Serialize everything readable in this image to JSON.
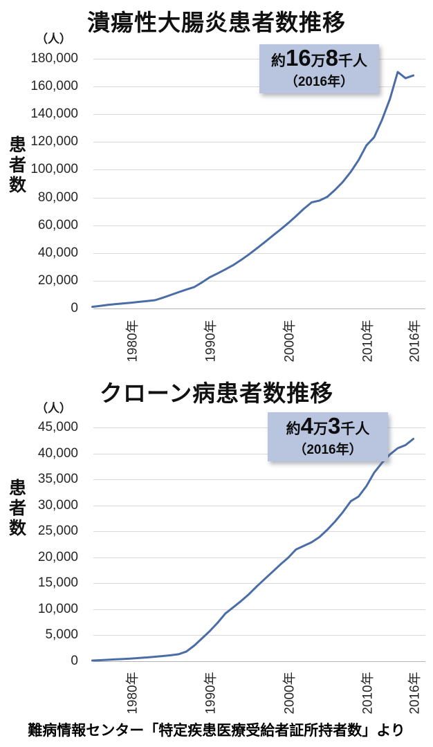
{
  "caption": "難病情報センター「特定疾患医療受給者証所持者数」より",
  "colors": {
    "line": "#4a6da7",
    "annotation_bg": "#b9c5df",
    "gridline": "#d9d9d9",
    "axis_line": "#b3b3b3",
    "text": "#1a1a1a"
  },
  "chart_data": [
    {
      "type": "line",
      "title": "潰瘍性大腸炎患者数推移",
      "unit_label": "（人）",
      "y_axis_label": "患者数",
      "legend": "none",
      "grid": "on",
      "line_color": "#4a6da7",
      "ylim": [
        0,
        180000
      ],
      "y_tick_step": 20000,
      "y_tick_labels": [
        "180,000",
        "160,000",
        "140,000",
        "120,000",
        "100,000",
        "80,000",
        "60,000",
        "40,000",
        "20,000",
        "0"
      ],
      "x_tick_years": [
        1980,
        1990,
        2000,
        2010,
        2016
      ],
      "x_tick_labels": [
        "1980年",
        "1990年",
        "2000年",
        "2010年",
        "2016年"
      ],
      "annotation": {
        "prefix": "約",
        "value1": "16",
        "unit1": "万",
        "value2": "8",
        "unit2": "千人",
        "line2": "（2016年）"
      },
      "x": [
        1975,
        1976,
        1977,
        1978,
        1979,
        1980,
        1981,
        1982,
        1983,
        1984,
        1985,
        1986,
        1987,
        1988,
        1989,
        1990,
        1991,
        1992,
        1993,
        1994,
        1995,
        1996,
        1997,
        1998,
        1999,
        2000,
        2001,
        2002,
        2003,
        2004,
        2005,
        2006,
        2007,
        2008,
        2009,
        2010,
        2011,
        2012,
        2013,
        2014,
        2015,
        2016
      ],
      "values": [
        1200,
        1900,
        2600,
        3200,
        3700,
        4200,
        4800,
        5400,
        6000,
        7800,
        9700,
        11700,
        13600,
        15400,
        18800,
        22500,
        25300,
        28200,
        31300,
        35000,
        39000,
        43300,
        47700,
        52300,
        56800,
        61500,
        66500,
        71800,
        76500,
        77800,
        80500,
        85500,
        91300,
        98500,
        107000,
        117500,
        123500,
        136000,
        151000,
        170500,
        166000,
        168000
      ]
    },
    {
      "type": "line",
      "title": "クローン病患者数推移",
      "unit_label": "（人）",
      "y_axis_label": "患者数",
      "legend": "none",
      "grid": "on",
      "line_color": "#4a6da7",
      "ylim": [
        0,
        45000
      ],
      "y_tick_step": 5000,
      "y_tick_labels": [
        "45,000",
        "40,000",
        "35,000",
        "30,000",
        "25,000",
        "20,000",
        "15,000",
        "10,000",
        "5,000",
        "0"
      ],
      "x_tick_years": [
        1980,
        1990,
        2000,
        2010,
        2016
      ],
      "x_tick_labels": [
        "1980年",
        "1990年",
        "2000年",
        "2010年",
        "2016年"
      ],
      "annotation": {
        "prefix": "約",
        "value1": "4",
        "unit1": "万",
        "value2": "3",
        "unit2": "千人",
        "line2": "（2016年）"
      },
      "x": [
        1975,
        1976,
        1977,
        1978,
        1979,
        1980,
        1981,
        1982,
        1983,
        1984,
        1985,
        1986,
        1987,
        1988,
        1989,
        1990,
        1991,
        1992,
        1993,
        1994,
        1995,
        1996,
        1997,
        1998,
        1999,
        2000,
        2001,
        2002,
        2003,
        2004,
        2005,
        2006,
        2007,
        2008,
        2009,
        2010,
        2011,
        2012,
        2013,
        2014,
        2015,
        2016
      ],
      "values": [
        130,
        200,
        280,
        360,
        440,
        520,
        620,
        730,
        860,
        1000,
        1150,
        1350,
        1850,
        3000,
        4400,
        5800,
        7400,
        9200,
        10400,
        11600,
        12900,
        14400,
        15800,
        17200,
        18600,
        19900,
        21500,
        22200,
        22900,
        23900,
        25300,
        26900,
        28700,
        30800,
        31700,
        33700,
        36300,
        38200,
        39800,
        41000,
        41600,
        42800
      ]
    }
  ]
}
